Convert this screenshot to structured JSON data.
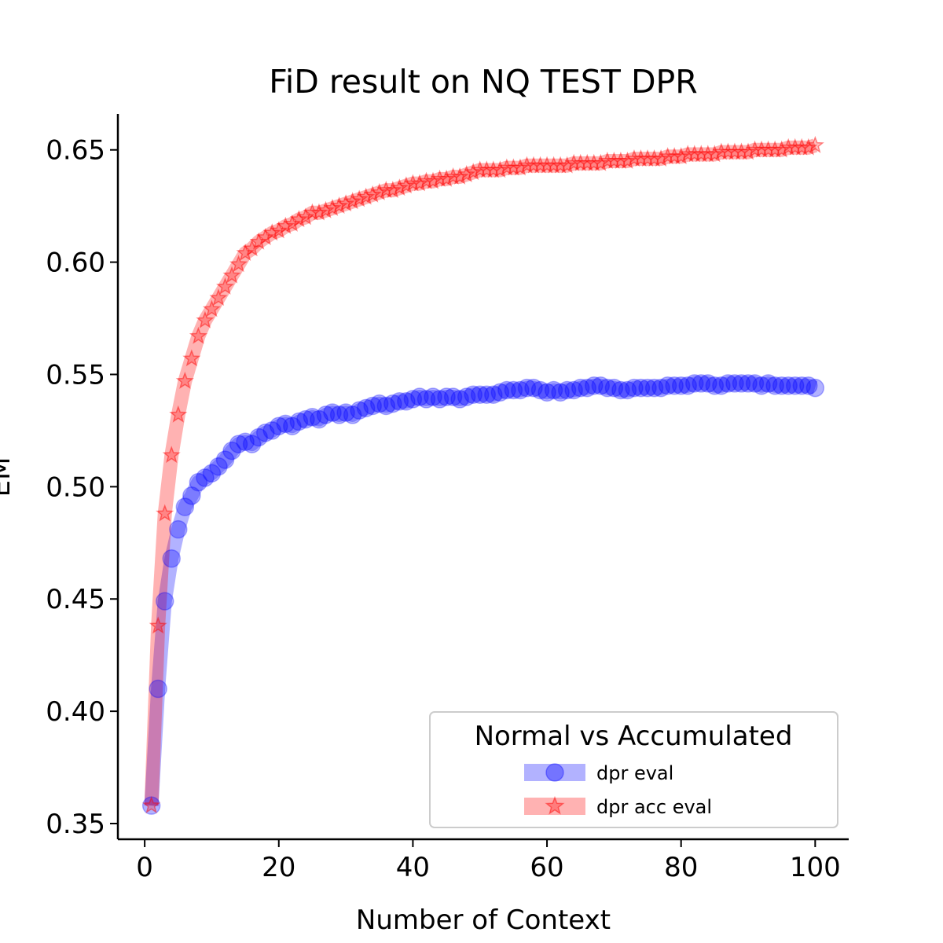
{
  "chart_data": {
    "type": "line",
    "title": "FiD result on NQ TEST DPR",
    "xlabel": "Number of Context",
    "ylabel": "EM",
    "xlim": [
      -4,
      105
    ],
    "ylim": [
      0.343,
      0.666
    ],
    "xticks": [
      0,
      20,
      40,
      60,
      80,
      100
    ],
    "yticks": [
      0.35,
      0.4,
      0.45,
      0.5,
      0.55,
      0.6,
      0.65
    ],
    "xtick_labels": [
      "0",
      "20",
      "40",
      "60",
      "80",
      "100"
    ],
    "ytick_labels": [
      "0.35",
      "0.40",
      "0.45",
      "0.50",
      "0.55",
      "0.60",
      "0.65"
    ],
    "grid": false,
    "legend": {
      "title": "Normal vs Accumulated",
      "placement": "lower right"
    },
    "series": [
      {
        "name": "dpr eval",
        "color": "#0000ff",
        "marker": "circle",
        "x": [
          1,
          2,
          3,
          4,
          5,
          6,
          7,
          8,
          9,
          10,
          11,
          12,
          13,
          14,
          15,
          16,
          17,
          18,
          19,
          20,
          21,
          22,
          23,
          24,
          25,
          26,
          27,
          28,
          29,
          30,
          31,
          32,
          33,
          34,
          35,
          36,
          37,
          38,
          39,
          40,
          41,
          42,
          43,
          44,
          45,
          46,
          47,
          48,
          49,
          50,
          51,
          52,
          53,
          54,
          55,
          56,
          57,
          58,
          59,
          60,
          61,
          62,
          63,
          64,
          65,
          66,
          67,
          68,
          69,
          70,
          71,
          72,
          73,
          74,
          75,
          76,
          77,
          78,
          79,
          80,
          81,
          82,
          83,
          84,
          85,
          86,
          87,
          88,
          89,
          90,
          91,
          92,
          93,
          94,
          95,
          96,
          97,
          98,
          99,
          100
        ],
        "y": [
          0.358,
          0.41,
          0.449,
          0.468,
          0.481,
          0.491,
          0.496,
          0.502,
          0.504,
          0.506,
          0.509,
          0.512,
          0.516,
          0.519,
          0.52,
          0.519,
          0.522,
          0.524,
          0.525,
          0.527,
          0.528,
          0.527,
          0.529,
          0.53,
          0.531,
          0.53,
          0.532,
          0.533,
          0.532,
          0.533,
          0.532,
          0.534,
          0.535,
          0.536,
          0.537,
          0.536,
          0.537,
          0.538,
          0.538,
          0.539,
          0.54,
          0.539,
          0.54,
          0.539,
          0.54,
          0.54,
          0.539,
          0.54,
          0.541,
          0.541,
          0.541,
          0.541,
          0.542,
          0.543,
          0.543,
          0.543,
          0.544,
          0.544,
          0.543,
          0.542,
          0.543,
          0.542,
          0.543,
          0.543,
          0.544,
          0.544,
          0.545,
          0.545,
          0.544,
          0.544,
          0.543,
          0.543,
          0.544,
          0.544,
          0.544,
          0.544,
          0.544,
          0.545,
          0.545,
          0.545,
          0.545,
          0.546,
          0.546,
          0.546,
          0.545,
          0.545,
          0.546,
          0.546,
          0.546,
          0.546,
          0.546,
          0.545,
          0.546,
          0.545,
          0.545,
          0.545,
          0.545,
          0.545,
          0.545,
          0.544
        ]
      },
      {
        "name": "dpr acc eval",
        "color": "#ff0000",
        "marker": "star",
        "x": [
          1,
          2,
          3,
          4,
          5,
          6,
          7,
          8,
          9,
          10,
          11,
          12,
          13,
          14,
          15,
          16,
          17,
          18,
          19,
          20,
          21,
          22,
          23,
          24,
          25,
          26,
          27,
          28,
          29,
          30,
          31,
          32,
          33,
          34,
          35,
          36,
          37,
          38,
          39,
          40,
          41,
          42,
          43,
          44,
          45,
          46,
          47,
          48,
          49,
          50,
          51,
          52,
          53,
          54,
          55,
          56,
          57,
          58,
          59,
          60,
          61,
          62,
          63,
          64,
          65,
          66,
          67,
          68,
          69,
          70,
          71,
          72,
          73,
          74,
          75,
          76,
          77,
          78,
          79,
          80,
          81,
          82,
          83,
          84,
          85,
          86,
          87,
          88,
          89,
          90,
          91,
          92,
          93,
          94,
          95,
          96,
          97,
          98,
          99,
          100
        ],
        "y": [
          0.358,
          0.438,
          0.488,
          0.514,
          0.532,
          0.547,
          0.557,
          0.567,
          0.574,
          0.579,
          0.584,
          0.589,
          0.594,
          0.599,
          0.604,
          0.606,
          0.609,
          0.611,
          0.613,
          0.614,
          0.616,
          0.617,
          0.619,
          0.62,
          0.622,
          0.622,
          0.623,
          0.624,
          0.625,
          0.626,
          0.627,
          0.628,
          0.629,
          0.63,
          0.631,
          0.632,
          0.632,
          0.633,
          0.634,
          0.635,
          0.635,
          0.636,
          0.636,
          0.637,
          0.637,
          0.638,
          0.638,
          0.639,
          0.64,
          0.641,
          0.641,
          0.641,
          0.641,
          0.642,
          0.642,
          0.642,
          0.643,
          0.643,
          0.643,
          0.643,
          0.643,
          0.643,
          0.643,
          0.644,
          0.644,
          0.644,
          0.644,
          0.644,
          0.645,
          0.645,
          0.645,
          0.645,
          0.646,
          0.646,
          0.646,
          0.646,
          0.646,
          0.647,
          0.647,
          0.647,
          0.648,
          0.648,
          0.648,
          0.648,
          0.648,
          0.649,
          0.649,
          0.649,
          0.649,
          0.649,
          0.65,
          0.65,
          0.65,
          0.65,
          0.65,
          0.651,
          0.651,
          0.651,
          0.651,
          0.652
        ]
      }
    ]
  }
}
